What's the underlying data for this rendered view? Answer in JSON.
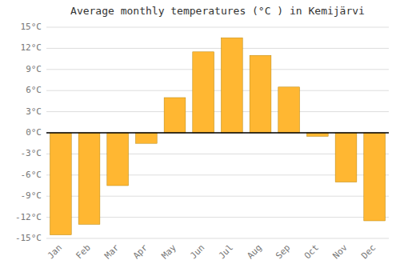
{
  "chart_data": {
    "type": "bar",
    "title": "Average monthly temperatures (°C ) in Kemijärvi",
    "categories": [
      "Jan",
      "Feb",
      "Mar",
      "Apr",
      "May",
      "Jun",
      "Jul",
      "Aug",
      "Sep",
      "Oct",
      "Nov",
      "Dec"
    ],
    "values": [
      -14.5,
      -13.0,
      -7.5,
      -1.5,
      5.0,
      11.5,
      13.5,
      11.0,
      6.5,
      -0.5,
      -7.0,
      -12.5
    ],
    "color": "#FFB732",
    "ylim": [
      -15,
      15
    ],
    "yticks": [
      {
        "value": -15,
        "label": "-15°C"
      },
      {
        "value": -12,
        "label": "-12°C"
      },
      {
        "value": -9,
        "label": "-9°C"
      },
      {
        "value": -6,
        "label": "-6°C"
      },
      {
        "value": -3,
        "label": "-3°C"
      },
      {
        "value": 0,
        "label": "0°C"
      },
      {
        "value": 3,
        "label": "3°C"
      },
      {
        "value": 6,
        "label": "6°C"
      },
      {
        "value": 9,
        "label": "9°C"
      },
      {
        "value": 12,
        "label": "12°C"
      },
      {
        "value": 15,
        "label": "15°C"
      }
    ],
    "grid": true
  }
}
